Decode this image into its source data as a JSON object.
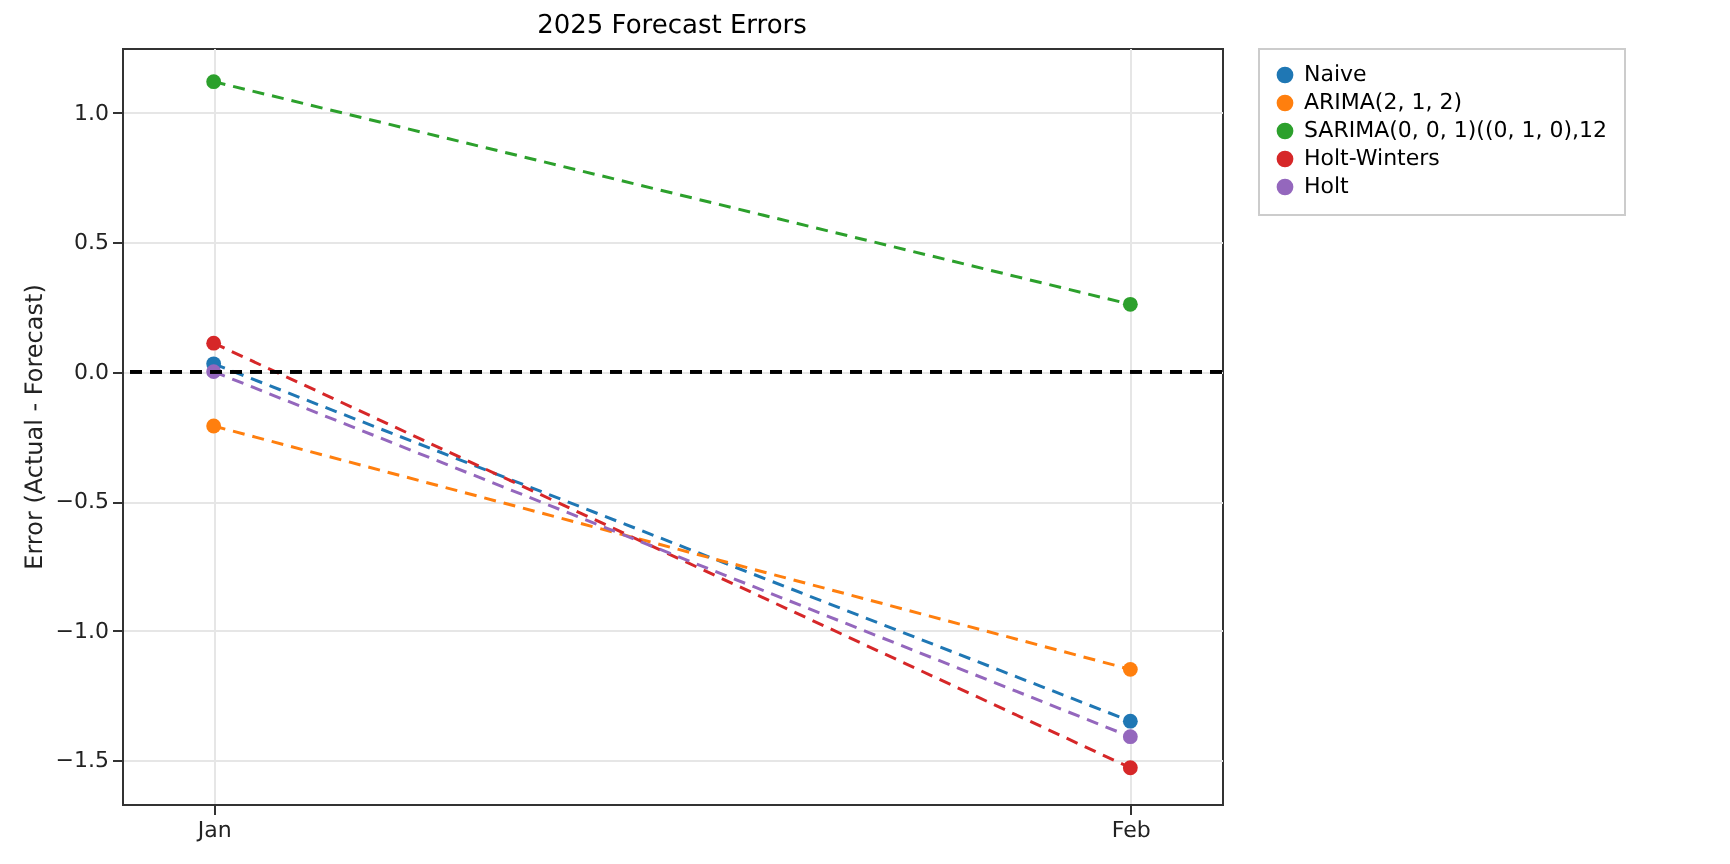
{
  "chart_data": {
    "type": "line",
    "title": "2025 Forecast Errors",
    "ylabel": "Error (Actual - Forecast)",
    "categories": [
      "Jan",
      "Feb"
    ],
    "series": [
      {
        "name": "Naive",
        "color": "#1f77b4",
        "values": [
          0.03,
          -1.35
        ]
      },
      {
        "name": "ARIMA(2, 1, 2)",
        "color": "#ff7f0e",
        "values": [
          -0.21,
          -1.15
        ]
      },
      {
        "name": "SARIMA(0, 0, 1)((0, 1, 0),12",
        "color": "#2ca02c",
        "values": [
          1.12,
          0.26
        ]
      },
      {
        "name": "Holt-Winters",
        "color": "#d62728",
        "values": [
          0.11,
          -1.53
        ]
      },
      {
        "name": "Holt",
        "color": "#9467bd",
        "values": [
          0.0,
          -1.41
        ]
      }
    ],
    "ylim": [
      -1.67,
      1.25
    ],
    "yticks": [
      {
        "value": -1.5,
        "label": "−1.5"
      },
      {
        "value": -1.0,
        "label": "−1.0"
      },
      {
        "value": -0.5,
        "label": "−0.5"
      },
      {
        "value": 0,
        "label": "0.0"
      },
      {
        "value": 0.5,
        "label": "0.5"
      },
      {
        "value": 1.0,
        "label": "1.0"
      }
    ],
    "ref_lines": [
      {
        "axis": "y",
        "value": 0,
        "color": "#000000",
        "line_style": "dashed"
      }
    ],
    "grid": true,
    "legend": "top right",
    "marker": "circle",
    "line_style": "dashed"
  }
}
